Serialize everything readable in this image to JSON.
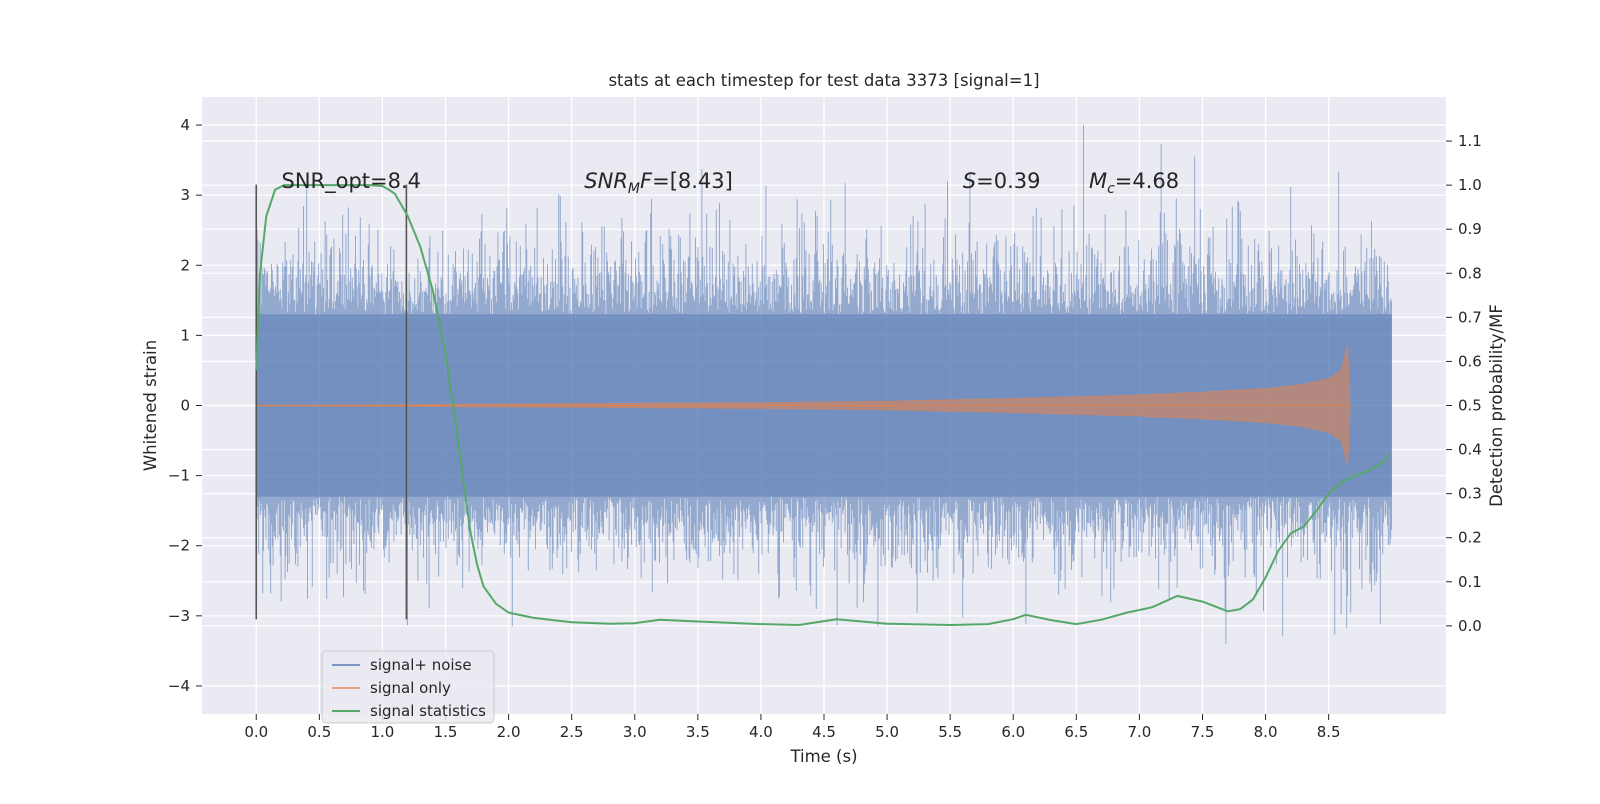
{
  "chart_data": {
    "type": "line",
    "title": "stats at each timestep for test data 3373 [signal=1]",
    "xlabel": "Time (s)",
    "ylabel_left": "Whitened strain",
    "ylabel_right": "Detection probability/MF",
    "xlim": [
      -0.43,
      9.43
    ],
    "ylim_left": [
      -4.4,
      4.4
    ],
    "ylim_right": [
      -0.2,
      1.2
    ],
    "x_ticks": [
      0.0,
      0.5,
      1.0,
      1.5,
      2.0,
      2.5,
      3.0,
      3.5,
      4.0,
      4.5,
      5.0,
      5.5,
      6.0,
      6.5,
      7.0,
      7.5,
      8.0,
      8.5
    ],
    "x_tick_labels": [
      "0.0",
      "0.5",
      "1.0",
      "1.5",
      "2.0",
      "2.5",
      "3.0",
      "3.5",
      "4.0",
      "4.5",
      "5.0",
      "5.5",
      "6.0",
      "6.5",
      "7.0",
      "7.5",
      "8.0",
      "8.5"
    ],
    "y_left_ticks": [
      4,
      3,
      2,
      1,
      0,
      -1,
      -2,
      -3,
      -4
    ],
    "y_left_tick_labels": [
      "4",
      "3",
      "2",
      "1",
      "0",
      "−1",
      "−2",
      "−3",
      "−4"
    ],
    "y_right_ticks": [
      1.1,
      1.0,
      0.9,
      0.8,
      0.7,
      0.6,
      0.5,
      0.4,
      0.3,
      0.2,
      0.1,
      0.0
    ],
    "y_right_tick_labels": [
      "1.1",
      "1.0",
      "0.9",
      "0.8",
      "0.7",
      "0.6",
      "0.5",
      "0.4",
      "0.3",
      "0.2",
      "0.1",
      "0.0"
    ],
    "grid": true,
    "legend_position": "lower-left",
    "series": [
      {
        "name": "signal+ noise",
        "axis": "left",
        "color": "#4c72b0",
        "style": "dense-noise",
        "x_range": [
          0.0,
          9.0
        ],
        "typical_envelope": [
          -1.3,
          1.3
        ],
        "max_peak": 4.0,
        "min_trough": -3.9
      },
      {
        "name": "signal only",
        "axis": "left",
        "color": "#dd8452",
        "style": "chirp",
        "x_range": [
          0.0,
          8.67
        ],
        "envelope": [
          [
            0.0,
            0.005
          ],
          [
            1.0,
            0.01
          ],
          [
            2.0,
            0.02
          ],
          [
            3.0,
            0.03
          ],
          [
            4.0,
            0.04
          ],
          [
            5.0,
            0.06
          ],
          [
            6.0,
            0.1
          ],
          [
            7.0,
            0.15
          ],
          [
            7.5,
            0.19
          ],
          [
            8.0,
            0.24
          ],
          [
            8.3,
            0.3
          ],
          [
            8.5,
            0.38
          ],
          [
            8.6,
            0.5
          ],
          [
            8.65,
            0.85
          ],
          [
            8.67,
            0.0
          ]
        ]
      },
      {
        "name": "signal statistics",
        "axis": "right",
        "color": "#55a868",
        "style": "line",
        "x": [
          0.0,
          0.03,
          0.08,
          0.15,
          0.22,
          0.3,
          0.5,
          0.7,
          0.9,
          1.0,
          1.05,
          1.1,
          1.2,
          1.3,
          1.4,
          1.5,
          1.55,
          1.6,
          1.65,
          1.7,
          1.75,
          1.8,
          1.9,
          2.0,
          2.2,
          2.5,
          2.8,
          3.0,
          3.2,
          3.5,
          4.0,
          4.3,
          4.6,
          5.0,
          5.5,
          5.8,
          6.0,
          6.1,
          6.3,
          6.5,
          6.7,
          6.9,
          7.1,
          7.3,
          7.5,
          7.7,
          7.8,
          7.9,
          8.0,
          8.1,
          8.2,
          8.3,
          8.4,
          8.5,
          8.6,
          8.7,
          8.8,
          8.9,
          8.95,
          8.98
        ],
        "y": [
          0.58,
          0.8,
          0.93,
          0.99,
          1.0,
          1.0,
          1.0,
          1.0,
          1.0,
          0.998,
          0.99,
          0.98,
          0.93,
          0.86,
          0.76,
          0.62,
          0.52,
          0.42,
          0.31,
          0.21,
          0.14,
          0.09,
          0.05,
          0.03,
          0.018,
          0.008,
          0.005,
          0.006,
          0.014,
          0.01,
          0.004,
          0.002,
          0.015,
          0.005,
          0.002,
          0.004,
          0.015,
          0.025,
          0.013,
          0.004,
          0.014,
          0.03,
          0.042,
          0.068,
          0.055,
          0.033,
          0.038,
          0.06,
          0.11,
          0.17,
          0.21,
          0.225,
          0.26,
          0.3,
          0.325,
          0.34,
          0.35,
          0.365,
          0.375,
          0.39
        ]
      }
    ],
    "vertical_lines": [
      {
        "x": 0.0,
        "y_range": [
          -3.05,
          3.15
        ],
        "color": "#555555"
      },
      {
        "x": 1.19,
        "y_range": [
          -3.05,
          3.15
        ],
        "color": "#555555"
      }
    ],
    "annotations": [
      {
        "x": 0.2,
        "y": 3.2,
        "parts": [
          {
            "text": "SNR_opt=8.4",
            "style": "normal"
          }
        ]
      },
      {
        "x": 2.6,
        "y": 3.2,
        "parts": [
          {
            "text": "SNR",
            "style": "italic"
          },
          {
            "text": "M",
            "style": "italic-sub"
          },
          {
            "text": "F",
            "style": "italic"
          },
          {
            "text": "=[8.43]",
            "style": "normal"
          }
        ]
      },
      {
        "x": 5.6,
        "y": 3.2,
        "parts": [
          {
            "text": "S",
            "style": "italic"
          },
          {
            "text": "=0.39",
            "style": "normal"
          }
        ]
      },
      {
        "x": 6.6,
        "y": 3.2,
        "parts": [
          {
            "text": "M",
            "style": "italic"
          },
          {
            "text": "c",
            "style": "italic-sub"
          },
          {
            "text": "=4.68",
            "style": "normal"
          }
        ]
      }
    ],
    "legend": [
      {
        "label": "signal+ noise",
        "color": "#4c72b0"
      },
      {
        "label": "signal only",
        "color": "#dd8452"
      },
      {
        "label": "signal statistics",
        "color": "#55a868"
      }
    ],
    "colors": {
      "plot_background": "#eaeaf2",
      "grid": "#ffffff",
      "text": "#262626"
    }
  }
}
